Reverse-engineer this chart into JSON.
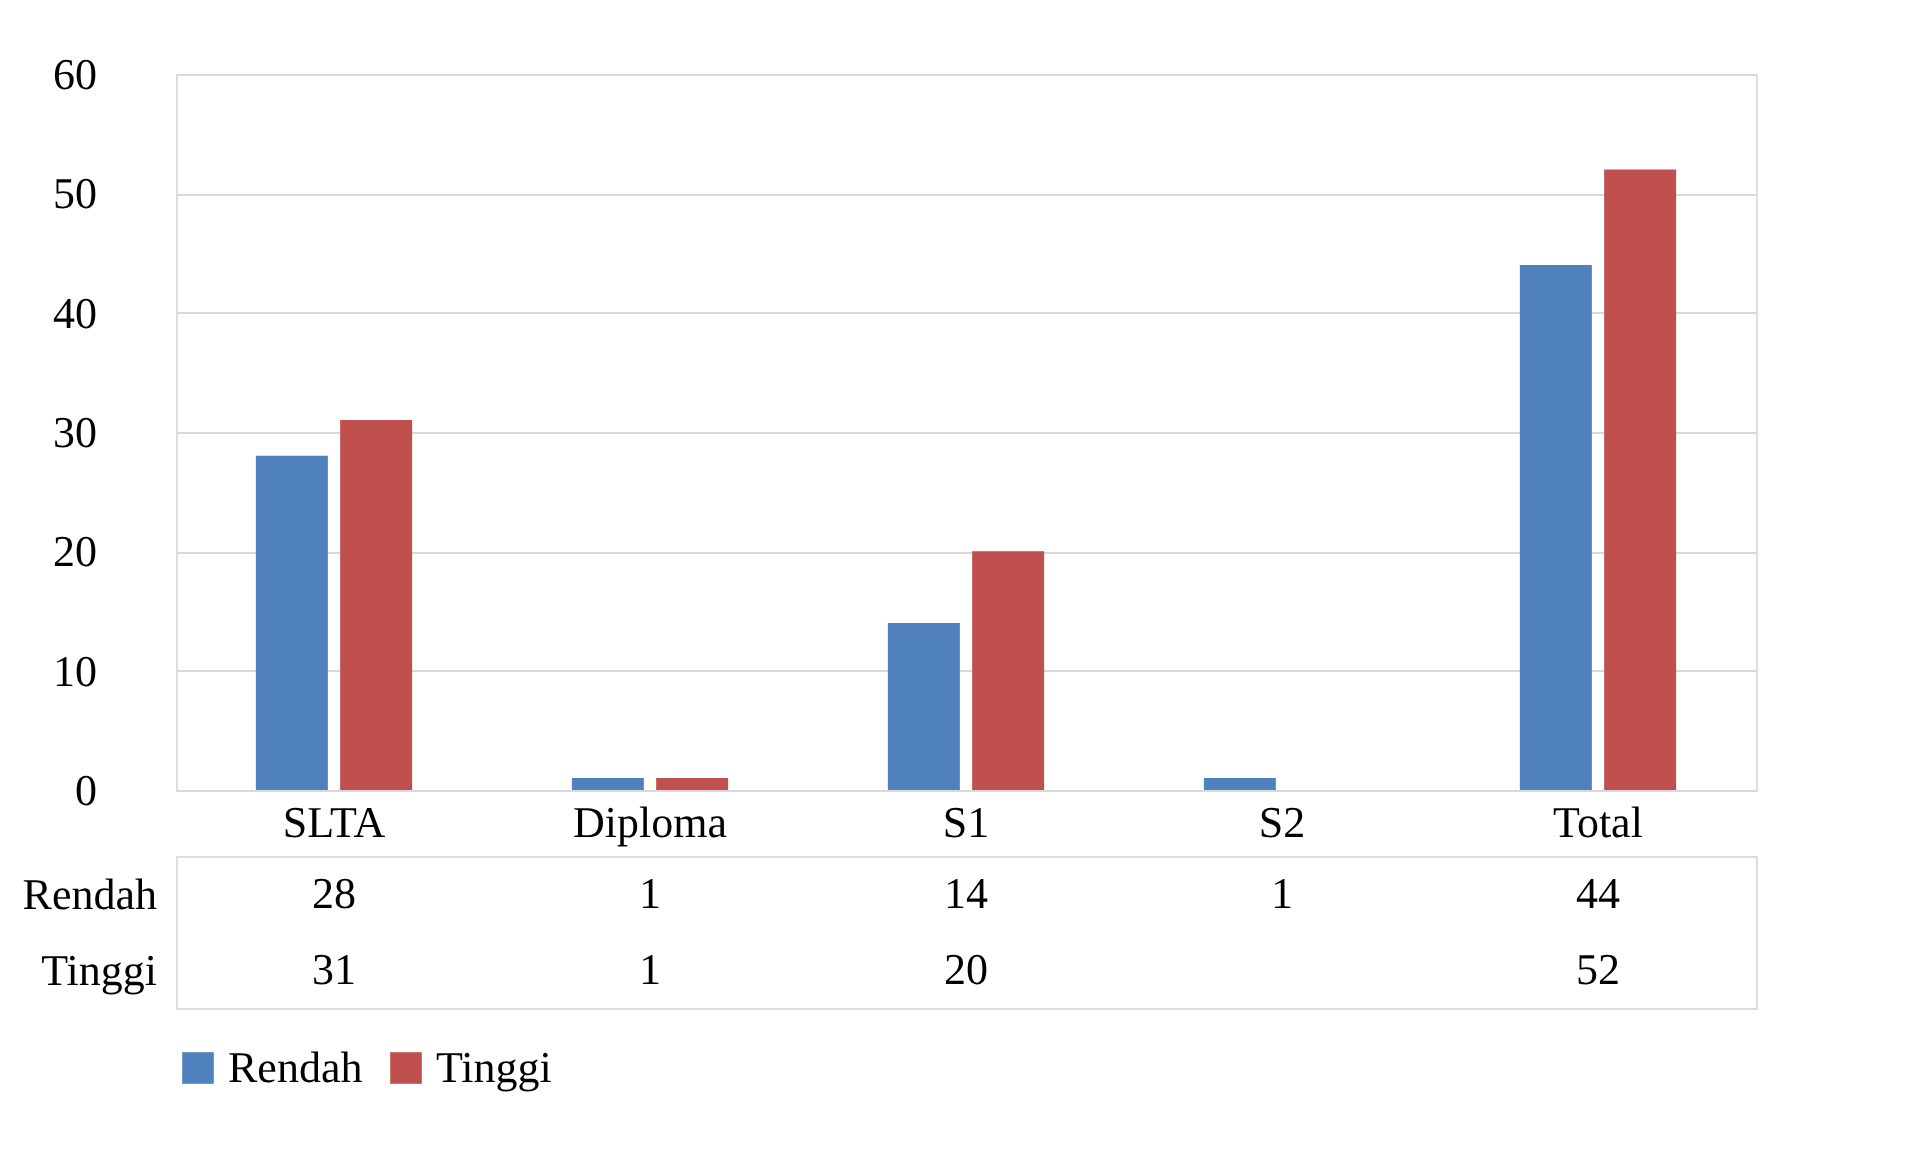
{
  "chart_data": {
    "type": "bar",
    "categories": [
      "SLTA",
      "Diploma",
      "S1",
      "S2",
      "Total"
    ],
    "series": [
      {
        "name": "Rendah",
        "color": "#4f81bd",
        "values": [
          28,
          1,
          14,
          1,
          44
        ]
      },
      {
        "name": "Tinggi",
        "color": "#c0504d",
        "values": [
          31,
          1,
          20,
          null,
          52
        ]
      }
    ],
    "ylim": [
      0,
      60
    ],
    "yticks": [
      0,
      10,
      20,
      30,
      40,
      50,
      60
    ],
    "grid": "y",
    "legend": "bottom",
    "data_labels": true
  }
}
